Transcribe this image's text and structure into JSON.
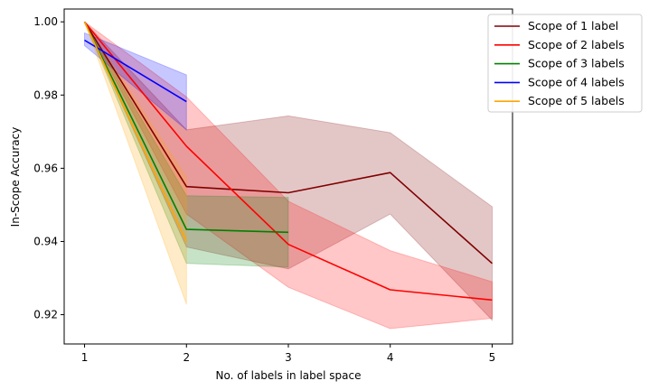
{
  "chart_data": {
    "type": "line",
    "xlabel": "No. of labels in label space",
    "ylabel": "In-Scope Accuracy",
    "xlim": [
      0.8,
      5.2
    ],
    "ylim": [
      0.912,
      1.0035
    ],
    "xticks": [
      1,
      2,
      3,
      4,
      5
    ],
    "yticks": [
      0.92,
      0.94,
      0.96,
      0.98,
      1.0
    ],
    "xtick_labels": [
      "1",
      "2",
      "3",
      "4",
      "5"
    ],
    "ytick_labels": [
      "0.92",
      "0.94",
      "0.96",
      "0.98",
      "1.00"
    ],
    "legend_position": "top-right",
    "series": [
      {
        "name": "Scope of 1 label",
        "color": "#800000",
        "x": [
          1,
          2,
          3,
          4,
          5
        ],
        "y": [
          1.0,
          0.955,
          0.9533,
          0.9588,
          0.934
        ],
        "lower": [
          1.0,
          0.9385,
          0.9325,
          0.9475,
          0.9185
        ],
        "upper": [
          1.0,
          0.9705,
          0.9743,
          0.9697,
          0.9495
        ]
      },
      {
        "name": "Scope of 2 labels",
        "color": "#ff0000",
        "x": [
          1,
          2,
          3,
          4,
          5
        ],
        "y": [
          1.0,
          0.966,
          0.9392,
          0.9268,
          0.924
        ],
        "lower": [
          1.0,
          0.9475,
          0.9275,
          0.9162,
          0.919
        ],
        "upper": [
          1.0,
          0.9795,
          0.951,
          0.9375,
          0.929
        ]
      },
      {
        "name": "Scope of 3 labels",
        "color": "#008000",
        "x": [
          1,
          2,
          3
        ],
        "y": [
          1.0,
          0.9433,
          0.9425
        ],
        "lower": [
          1.0,
          0.934,
          0.933
        ],
        "upper": [
          1.0,
          0.9525,
          0.952
        ]
      },
      {
        "name": "Scope of 4 labels",
        "color": "#0000ff",
        "x": [
          1,
          2
        ],
        "y": [
          0.995,
          0.9782
        ],
        "lower": [
          0.9935,
          0.9705
        ],
        "upper": [
          0.997,
          0.9855
        ]
      },
      {
        "name": "Scope of 5 labels",
        "color": "#ffa500",
        "x": [
          1,
          2
        ],
        "y": [
          1.0,
          0.94
        ],
        "lower": [
          1.0,
          0.9228
        ],
        "upper": [
          1.0,
          0.9575
        ]
      }
    ]
  }
}
